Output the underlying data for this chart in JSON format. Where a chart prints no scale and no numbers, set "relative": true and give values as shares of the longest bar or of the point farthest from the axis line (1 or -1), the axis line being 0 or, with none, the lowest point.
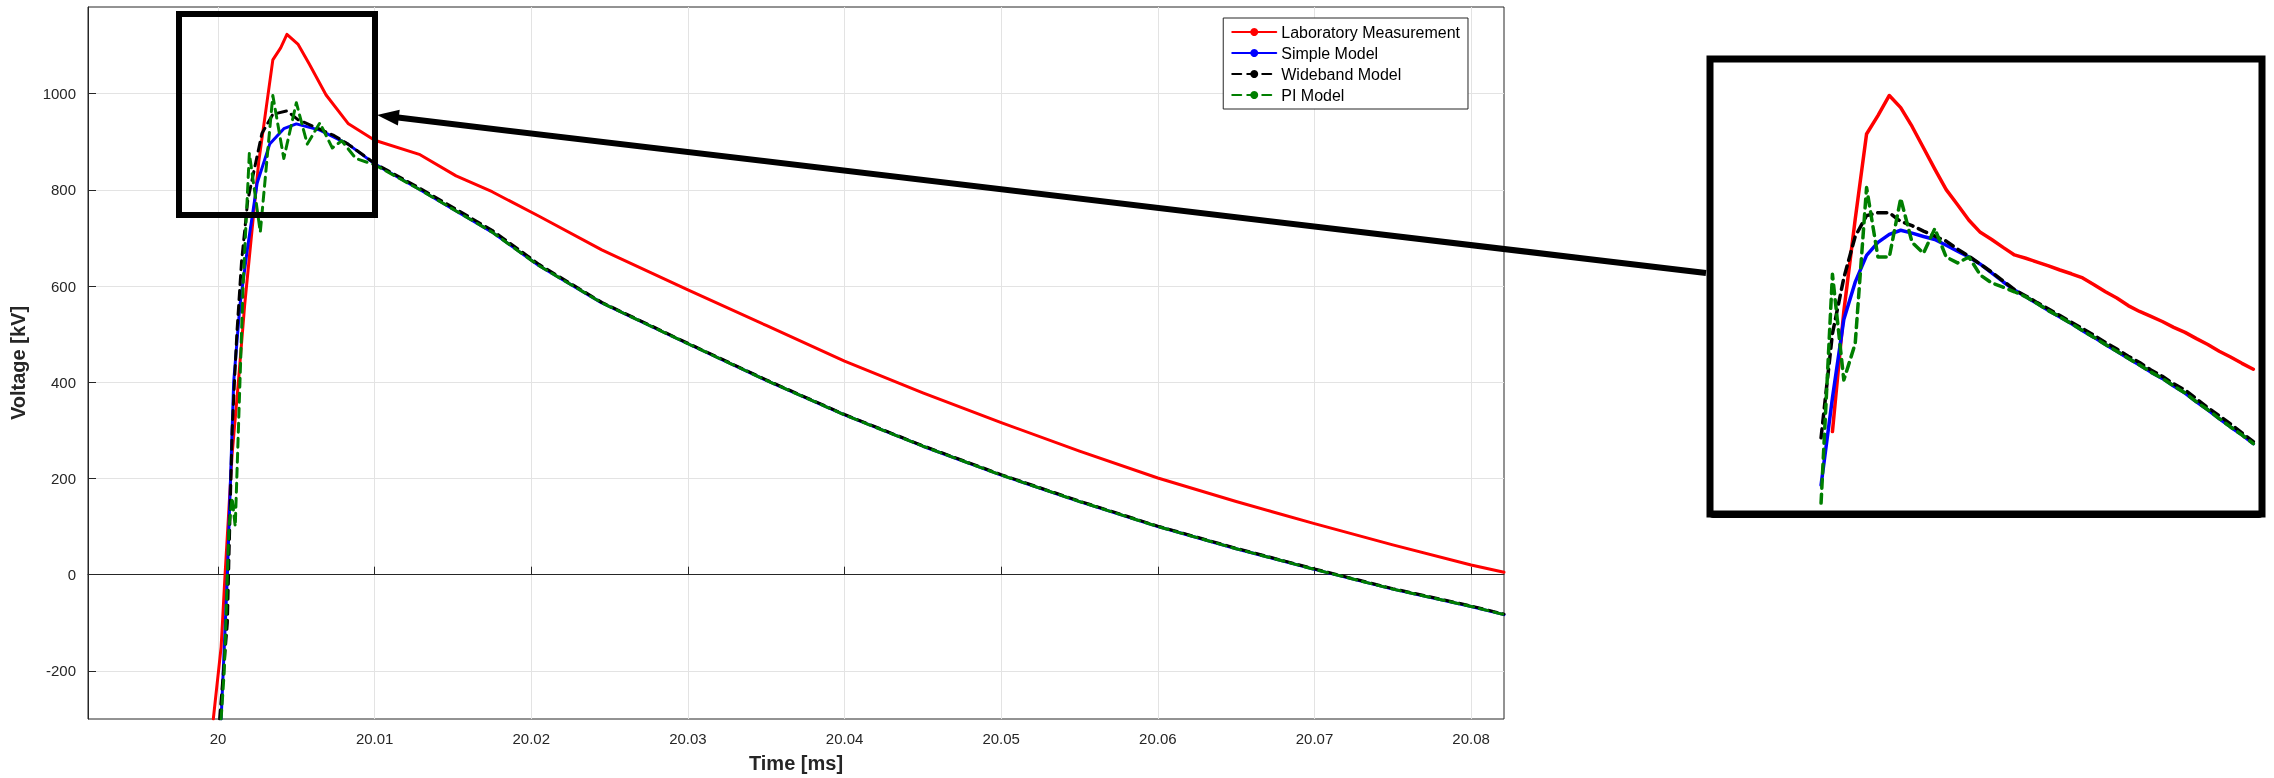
{
  "chart_data": [
    {
      "type": "line",
      "xlabel": "Time [ms]",
      "ylabel": "Voltage [kV]",
      "xlim": [
        19.9917,
        20.0821
      ],
      "ylim": [
        -300,
        1180
      ],
      "xticks": [
        20,
        20.01,
        20.02,
        20.03,
        20.04,
        20.05,
        20.06,
        20.07,
        20.08
      ],
      "yticks": [
        -200,
        0,
        200,
        400,
        600,
        800,
        1000
      ],
      "grid": true,
      "legend": "top right",
      "series": [
        {
          "name": "Laboratory Measurement",
          "color": "#ff0000",
          "line_style": "solid",
          "x": [
            19.9997,
            20.0002,
            20.00045,
            20.0009,
            20.0013,
            20.0017,
            20.0026,
            20.0035,
            20.004,
            20.0044,
            20.0051,
            20.0058,
            20.0069,
            20.0083,
            20.01,
            20.0129,
            20.0152,
            20.0175,
            20.0205,
            20.0245,
            20.03,
            20.035,
            20.04,
            20.045,
            20.05,
            20.055,
            20.06,
            20.065,
            20.07,
            20.075,
            20.08,
            20.0821
          ],
          "values": [
            -300,
            -150,
            0,
            250,
            400,
            560,
            858,
            1070,
            1095,
            1123,
            1103,
            1063,
            997,
            938,
            903,
            873,
            829,
            796,
            745,
            675,
            592,
            518,
            444,
            378,
            316,
            257,
            201,
            152,
            106,
            62,
            20,
            5
          ]
        },
        {
          "name": "Simple Model",
          "color": "#0000ff",
          "line_style": "solid",
          "x": [
            20.0002,
            20.0006,
            20.001,
            20.0014,
            20.0019,
            20.0025,
            20.0033,
            20.0042,
            20.005,
            20.0065,
            20.0083,
            20.01,
            20.0129,
            20.0152,
            20.0175,
            20.0205,
            20.0245,
            20.03,
            20.035,
            20.04,
            20.045,
            20.05,
            20.055,
            20.06,
            20.065,
            20.07,
            20.075,
            20.08,
            20.0821
          ],
          "values": [
            -300,
            0,
            400,
            560,
            683,
            814,
            895,
            927,
            937,
            924,
            895,
            854,
            800,
            756,
            712,
            642,
            565,
            480,
            404,
            332,
            267,
            207,
            152,
            100,
            54,
            11,
            -30,
            -66,
            -83
          ]
        },
        {
          "name": "Wideband Model",
          "color": "#000000",
          "line_style": "dashed",
          "x": [
            20.0001,
            20.0006,
            20.0009,
            20.0012,
            20.0015,
            20.0019,
            20.0028,
            20.0035,
            20.0044,
            20.0051,
            20.0074,
            20.0083,
            20.01,
            20.0129,
            20.0175,
            20.0205,
            20.0245,
            20.03,
            20.035,
            20.04,
            20.045,
            20.05,
            20.055,
            20.06,
            20.065,
            20.07,
            20.075,
            20.08,
            20.0821
          ],
          "values": [
            -300,
            -100,
            300,
            500,
            650,
            778,
            917,
            957,
            964,
            946,
            913,
            895,
            855,
            803,
            716,
            645,
            566,
            481,
            405,
            333,
            268,
            208,
            153,
            101,
            55,
            12,
            -29,
            -65,
            -82
          ]
        },
        {
          "name": "PI Model",
          "color": "#007f00",
          "line_style": "dashed",
          "x": [
            20.0002,
            20.0004,
            20.0007,
            20.0009,
            20.0011,
            20.0013,
            20.0016,
            20.002,
            20.0027,
            20.0035,
            20.0042,
            20.005,
            20.0057,
            20.0065,
            20.0073,
            20.0079,
            20.0088,
            20.01,
            20.0129,
            20.0152,
            20.0175,
            20.0205,
            20.0245,
            20.03,
            20.035,
            20.04,
            20.045,
            20.05,
            20.055,
            20.06,
            20.065,
            20.07,
            20.075,
            20.08,
            20.0821
          ],
          "values": [
            -300,
            -200,
            100,
            160,
            100,
            300,
            600,
            876,
            712,
            996,
            865,
            981,
            895,
            939,
            887,
            902,
            865,
            852,
            800,
            756,
            712,
            642,
            565,
            480,
            404,
            332,
            267,
            207,
            152,
            100,
            54,
            11,
            -30,
            -66,
            -83
          ]
        }
      ]
    },
    {
      "type": "line",
      "relative": true,
      "categories": [
        null,
        null,
        null,
        null,
        null,
        null,
        null,
        null,
        null,
        null,
        null,
        null,
        null,
        null,
        null,
        null,
        null,
        null,
        null,
        null,
        null,
        null,
        null,
        null,
        null,
        null,
        null,
        null,
        null,
        null,
        null,
        null,
        null,
        null,
        null,
        null,
        null,
        null,
        null,
        null,
        null,
        null,
        null,
        null,
        null,
        null,
        null,
        null
      ],
      "series": [
        {
          "color": "#ff0000",
          "line_style": "solid",
          "values": [
            null,
            null,
            null,
            null,
            null,
            null,
            null,
            null,
            null,
            null,
            0.197,
            0.484,
            0.704,
            0.908,
            0.952,
            1.0,
            0.971,
            0.926,
            0.875,
            0.824,
            0.775,
            0.739,
            0.702,
            0.673,
            0.656,
            0.637,
            0.619,
            0.611,
            0.602,
            0.593,
            0.583,
            0.574,
            0.564,
            0.548,
            0.531,
            0.516,
            0.498,
            0.484,
            0.472,
            0.46,
            0.446,
            0.434,
            0.419,
            0.405,
            0.389,
            0.375,
            0.36,
            0.346
          ]
        },
        {
          "color": "#0000ff",
          "line_style": "solid",
          "values": [
            null,
            null,
            null,
            null,
            null,
            null,
            null,
            null,
            null,
            0.069,
            0.277,
            0.465,
            0.554,
            0.618,
            0.649,
            0.668,
            0.678,
            0.671,
            0.663,
            0.656,
            0.642,
            0.628,
            0.614,
            0.597,
            0.576,
            0.555,
            0.535,
            0.519,
            0.503,
            0.486,
            0.471,
            0.455,
            0.438,
            0.422,
            0.405,
            0.389,
            0.372,
            0.356,
            0.339,
            0.324,
            0.306,
            0.289,
            0.268,
            0.249,
            0.228,
            0.208,
            0.189,
            0.168
          ]
        },
        {
          "color": "#000000",
          "line_style": "dashed",
          "values": [
            null,
            null,
            null,
            null,
            null,
            null,
            null,
            null,
            null,
            0.182,
            0.431,
            0.564,
            0.663,
            0.713,
            0.72,
            0.72,
            0.699,
            0.689,
            0.676,
            0.664,
            0.652,
            0.633,
            0.616,
            0.597,
            0.578,
            0.557,
            0.536,
            0.521,
            0.505,
            0.49,
            0.474,
            0.458,
            0.443,
            0.427,
            0.41,
            0.394,
            0.377,
            0.362,
            0.344,
            0.329,
            0.311,
            0.296,
            0.275,
            0.254,
            0.235,
            0.215,
            0.194,
            0.173
          ]
        },
        {
          "color": "#007f00",
          "line_style": "dashed",
          "values": [
            null,
            null,
            null,
            null,
            null,
            null,
            null,
            null,
            null,
            0.026,
            0.573,
            0.32,
            0.407,
            0.78,
            0.614,
            0.614,
            0.754,
            0.649,
            0.623,
            0.682,
            0.614,
            0.6,
            0.614,
            0.571,
            0.552,
            0.542,
            0.531,
            0.519,
            0.503,
            0.486,
            0.471,
            0.455,
            0.438,
            0.422,
            0.405,
            0.389,
            0.372,
            0.356,
            0.339,
            0.324,
            0.306,
            0.289,
            0.268,
            0.249,
            0.228,
            0.208,
            0.189,
            0.168
          ]
        }
      ]
    }
  ]
}
